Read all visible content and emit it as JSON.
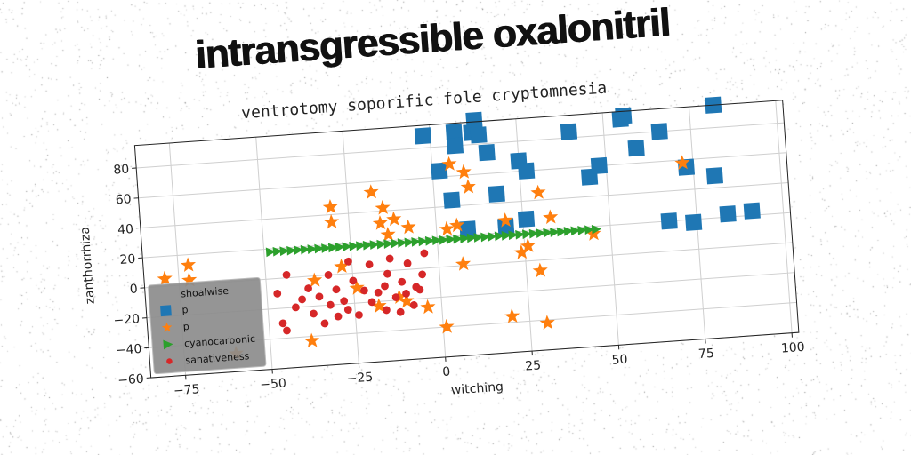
{
  "main_title": "intransgressible oxalonitril",
  "chart_data": {
    "type": "scatter",
    "title": "ventrotomy soporific fole cryptomnesia",
    "xlabel": "witching",
    "ylabel": "zanthorrhiza",
    "xlim": [
      -85,
      102
    ],
    "ylim": [
      -60,
      95
    ],
    "xticks": [
      -75,
      -50,
      -25,
      0,
      25,
      50,
      75,
      100
    ],
    "yticks": [
      -60,
      -40,
      -20,
      0,
      20,
      40,
      60,
      80
    ],
    "xtick_labels": [
      "−75",
      "−50",
      "−25",
      "0",
      "25",
      "50",
      "75",
      "100"
    ],
    "ytick_labels": [
      "−60",
      "−40",
      "−20",
      "0",
      "20",
      "40",
      "60",
      "80"
    ],
    "grid": true,
    "legend": {
      "title": "shoalwise",
      "placement": "lower-left"
    },
    "series": [
      {
        "name": "p",
        "marker": "square",
        "color": "#1f77b4",
        "points": [
          [
            -2,
            88
          ],
          [
            2,
            64
          ],
          [
            5,
            44
          ],
          [
            7,
            89
          ],
          [
            7,
            80
          ],
          [
            9,
            24
          ],
          [
            12,
            88
          ],
          [
            13,
            96
          ],
          [
            14,
            86
          ],
          [
            16,
            74
          ],
          [
            18,
            46
          ],
          [
            20,
            24
          ],
          [
            25,
            67
          ],
          [
            26,
            28
          ],
          [
            27,
            60
          ],
          [
            40,
            84
          ],
          [
            45,
            53
          ],
          [
            48,
            60
          ],
          [
            55,
            90
          ],
          [
            56,
            92
          ],
          [
            59,
            70
          ],
          [
            66,
            80
          ],
          [
            67,
            20
          ],
          [
            73,
            55
          ],
          [
            74,
            18
          ],
          [
            82,
            95
          ],
          [
            81,
            48
          ],
          [
            84,
            22
          ],
          [
            91,
            23
          ]
        ]
      },
      {
        "name": "p",
        "marker": "star",
        "color": "#ff7f0e",
        "points": [
          [
            -79,
            5
          ],
          [
            -72,
            13
          ],
          [
            -72,
            3
          ],
          [
            -60,
            -48
          ],
          [
            -38,
            -43
          ],
          [
            -36,
            -3
          ],
          [
            -30,
            45
          ],
          [
            -30,
            35
          ],
          [
            -28,
            5
          ],
          [
            -24,
            -10
          ],
          [
            -18,
            -23
          ],
          [
            -18,
            53
          ],
          [
            -16,
            32
          ],
          [
            -15,
            42
          ],
          [
            -14,
            24
          ],
          [
            -12,
            34
          ],
          [
            -12,
            -18
          ],
          [
            -10,
            -21
          ],
          [
            -8,
            28
          ],
          [
            -4,
            -26
          ],
          [
            1,
            -40
          ],
          [
            3,
            25
          ],
          [
            5,
            68
          ],
          [
            6,
            27
          ],
          [
            7,
            1
          ],
          [
            9,
            62
          ],
          [
            10,
            52
          ],
          [
            20,
            -36
          ],
          [
            20,
            28
          ],
          [
            24,
            6
          ],
          [
            26,
            10
          ],
          [
            29,
            -7
          ],
          [
            30,
            45
          ],
          [
            30,
            -42
          ],
          [
            33,
            28
          ],
          [
            45,
            15
          ],
          [
            72,
            58
          ]
        ]
      },
      {
        "name": "cyanocarbonic",
        "marker": "triangle-right",
        "color": "#2ca02c",
        "points": [
          [
            -48,
            18
          ],
          [
            -46,
            18
          ],
          [
            -44,
            18
          ],
          [
            -42,
            18
          ],
          [
            -40,
            18
          ],
          [
            -38,
            18
          ],
          [
            -36,
            18
          ],
          [
            -34,
            18
          ],
          [
            -32,
            18
          ],
          [
            -30,
            18
          ],
          [
            -28,
            18
          ],
          [
            -26,
            18
          ],
          [
            -24,
            18
          ],
          [
            -22,
            18
          ],
          [
            -20,
            18
          ],
          [
            -18,
            18
          ],
          [
            -16,
            18
          ],
          [
            -14,
            18
          ],
          [
            -12,
            18
          ],
          [
            -10,
            18
          ],
          [
            -8,
            18
          ],
          [
            -6,
            18
          ],
          [
            -4,
            18
          ],
          [
            -2,
            18
          ],
          [
            0,
            18
          ],
          [
            2,
            18
          ],
          [
            4,
            18
          ],
          [
            6,
            18
          ],
          [
            8,
            18
          ],
          [
            10,
            18
          ],
          [
            12,
            18
          ],
          [
            14,
            18
          ],
          [
            16,
            18
          ],
          [
            18,
            18
          ],
          [
            20,
            18
          ],
          [
            22,
            18
          ],
          [
            24,
            18
          ],
          [
            26,
            18
          ],
          [
            28,
            18
          ],
          [
            30,
            18
          ],
          [
            32,
            18
          ],
          [
            34,
            18
          ],
          [
            36,
            18
          ],
          [
            38,
            18
          ],
          [
            40,
            18
          ],
          [
            42,
            18
          ],
          [
            44,
            18
          ],
          [
            46,
            18
          ]
        ]
      },
      {
        "name": "sanativeness",
        "marker": "circle",
        "color": "#d62728",
        "points": [
          [
            -47,
            -10
          ],
          [
            -46,
            -30
          ],
          [
            -45,
            -35
          ],
          [
            -44,
            2
          ],
          [
            -42,
            -20
          ],
          [
            -40,
            -15
          ],
          [
            -38,
            -8
          ],
          [
            -37,
            -25
          ],
          [
            -35,
            -14
          ],
          [
            -34,
            -32
          ],
          [
            -32,
            -20
          ],
          [
            -32,
            0
          ],
          [
            -30,
            -28
          ],
          [
            -30,
            -10
          ],
          [
            -28,
            -18
          ],
          [
            -27,
            -24
          ],
          [
            -26,
            8
          ],
          [
            -25,
            -5
          ],
          [
            -24,
            -28
          ],
          [
            -22,
            -12
          ],
          [
            -20,
            5
          ],
          [
            -20,
            -20
          ],
          [
            -18,
            -14
          ],
          [
            -16,
            -10
          ],
          [
            -16,
            -26
          ],
          [
            -15,
            -2
          ],
          [
            -14,
            8
          ],
          [
            -13,
            -18
          ],
          [
            -12,
            -28
          ],
          [
            -11,
            -8
          ],
          [
            -10,
            -16
          ],
          [
            -9,
            4
          ],
          [
            -8,
            -24
          ],
          [
            -7,
            -12
          ],
          [
            -6,
            -14
          ],
          [
            -5,
            -4
          ],
          [
            -4,
            10
          ]
        ]
      }
    ]
  }
}
